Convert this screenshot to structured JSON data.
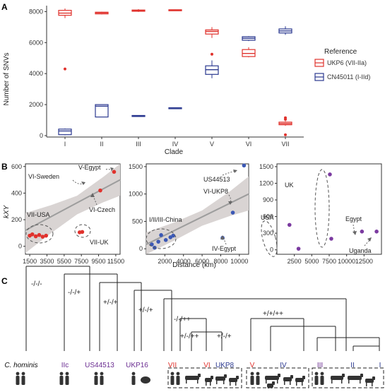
{
  "panels": {
    "a": "A",
    "b": "B",
    "c": "C"
  },
  "colors": {
    "ukp6": "#e0322d",
    "cn45011": "#2b3990",
    "purple": "#6a2c91",
    "ribbon": "#d9d4d3",
    "fit": "#9d9d9d",
    "points_b": "#e0322d",
    "points_b2": "#3b58b5",
    "points_b3": "#7b3aa0"
  },
  "chart_data": [
    {
      "type": "box",
      "id": "A",
      "ylabel": "Number of SNVs",
      "xlabel": "Clade",
      "ylim": [
        0,
        8200
      ],
      "yticks": [
        0,
        2000,
        4000,
        6000,
        8000
      ],
      "categories": [
        "I",
        "II",
        "III",
        "IV",
        "V",
        "VI",
        "VII"
      ],
      "legend": {
        "title": "Reference",
        "items": [
          "UKP6 (VII-IIa)",
          "CN45011 (I-IId)"
        ],
        "placement": "right"
      },
      "series": [
        {
          "name": "UKP6 (VII-IIa)",
          "color_key": "ukp6",
          "boxes": [
            {
              "category": "I",
              "min": 7580,
              "q1": 7760,
              "median": 7900,
              "q3": 8080,
              "max": 8200,
              "outliers": [
                4300
              ]
            },
            {
              "category": "II",
              "min": 7820,
              "q1": 7850,
              "median": 7920,
              "q3": 7960,
              "max": 7990,
              "outliers": []
            },
            {
              "category": "III",
              "min": 7980,
              "q1": 8020,
              "median": 8060,
              "q3": 8100,
              "max": 8160,
              "outliers": []
            },
            {
              "category": "IV",
              "min": 8060,
              "q1": 8080,
              "median": 8100,
              "q3": 8120,
              "max": 8140,
              "outliers": []
            },
            {
              "category": "V",
              "min": 6300,
              "q1": 6550,
              "median": 6720,
              "q3": 6820,
              "max": 7000,
              "outliers": [
                5250
              ]
            },
            {
              "category": "VI",
              "min": 5050,
              "q1": 5100,
              "median": 5300,
              "q3": 5550,
              "max": 5700,
              "outliers": []
            },
            {
              "category": "VII",
              "min": 640,
              "q1": 700,
              "median": 780,
              "q3": 870,
              "max": 940,
              "outliers": [
                1150,
                1050,
                50
              ]
            }
          ]
        },
        {
          "name": "CN45011 (I-IId)",
          "color_key": "cn45011",
          "boxes": [
            {
              "category": "I",
              "min": 20,
              "q1": 60,
              "median": 300,
              "q3": 420,
              "max": 460,
              "outliers": []
            },
            {
              "category": "II",
              "min": 1200,
              "q1": 1200,
              "median": 1900,
              "q3": 2000,
              "max": 2000,
              "outliers": []
            },
            {
              "category": "III",
              "min": 1280,
              "q1": 1280,
              "median": 1280,
              "q3": 1300,
              "max": 1300,
              "outliers": []
            },
            {
              "category": "IV",
              "min": 1780,
              "q1": 1780,
              "median": 1790,
              "q3": 1800,
              "max": 1800,
              "outliers": []
            },
            {
              "category": "V",
              "min": 3700,
              "q1": 3950,
              "median": 4250,
              "q3": 4500,
              "max": 4850,
              "outliers": []
            },
            {
              "category": "VI",
              "min": 6100,
              "q1": 6150,
              "median": 6280,
              "q3": 6380,
              "max": 6420,
              "outliers": []
            },
            {
              "category": "VII",
              "min": 6500,
              "q1": 6620,
              "median": 6750,
              "q3": 6880,
              "max": 7050,
              "outliers": []
            }
          ]
        }
      ]
    },
    {
      "type": "scatter",
      "id": "B1",
      "ylabel": "kXY",
      "xlim": [
        1000,
        12000
      ],
      "ylim": [
        -60,
        620
      ],
      "xticks": [
        1500,
        3500,
        5500,
        7500,
        9500,
        11500
      ],
      "yticks": [
        0,
        200,
        400,
        600
      ],
      "fit": {
        "x1": 1000,
        "y1": 120,
        "x2": 12000,
        "y2": 500
      },
      "band": {
        "upper": [
          [
            1000,
            250
          ],
          [
            4000,
            310
          ],
          [
            7000,
            380
          ],
          [
            10000,
            520
          ],
          [
            12000,
            620
          ]
        ],
        "lower": [
          [
            12000,
            380
          ],
          [
            10000,
            330
          ],
          [
            7000,
            240
          ],
          [
            4000,
            100
          ],
          [
            1000,
            -50
          ]
        ]
      },
      "points": [
        [
          1500,
          80
        ],
        [
          1800,
          90
        ],
        [
          2200,
          75
        ],
        [
          2600,
          85
        ],
        [
          3000,
          72
        ],
        [
          3400,
          80
        ],
        [
          7300,
          105
        ],
        [
          7600,
          108
        ],
        [
          9700,
          420
        ],
        [
          11300,
          560
        ]
      ],
      "annotations": [
        "VI-Sweden",
        "V-Egypt",
        "VI-Czech",
        "VII-USA",
        "VII-UK"
      ]
    },
    {
      "type": "scatter",
      "id": "B2",
      "xlabel": "Distance (km)",
      "xlim": [
        0,
        11000
      ],
      "ylim": [
        -100,
        1550
      ],
      "xticks": [
        2000,
        4000,
        6000,
        8000,
        10000
      ],
      "yticks": [
        0,
        500,
        1000,
        1500
      ],
      "fit": {
        "x1": 0,
        "y1": 80,
        "x2": 11000,
        "y2": 1000
      },
      "band": {
        "upper": [
          [
            0,
            300
          ],
          [
            3000,
            480
          ],
          [
            6000,
            700
          ],
          [
            9000,
            1050
          ],
          [
            11000,
            1320
          ]
        ],
        "lower": [
          [
            11000,
            700
          ],
          [
            9000,
            600
          ],
          [
            6000,
            420
          ],
          [
            3000,
            150
          ],
          [
            0,
            -150
          ]
        ]
      },
      "points": [
        [
          600,
          80
        ],
        [
          900,
          20
        ],
        [
          1300,
          130
        ],
        [
          1600,
          250
        ],
        [
          2100,
          160
        ],
        [
          2600,
          210
        ],
        [
          2900,
          240
        ],
        [
          8200,
          200
        ],
        [
          9300,
          660
        ],
        [
          10500,
          1520
        ]
      ],
      "annotations": [
        "US44513",
        "VI-UKP8",
        "I/II/III-China",
        "IV-Egypt"
      ]
    },
    {
      "type": "scatter",
      "id": "B3",
      "xlim": [
        0,
        15000
      ],
      "ylim": [
        -80,
        1550
      ],
      "xticks": [
        2500,
        5000,
        7500,
        10000,
        12500
      ],
      "yticks": [
        0,
        300,
        600,
        900,
        1200,
        1500
      ],
      "points": [
        [
          1800,
          450
        ],
        [
          3100,
          20
        ],
        [
          7600,
          1360
        ],
        [
          7800,
          200
        ],
        [
          12200,
          330
        ],
        [
          14300,
          330
        ]
      ],
      "annotations": [
        "USA",
        "UK",
        "Egypt",
        "Uganda"
      ]
    }
  ],
  "tree": {
    "signs": [
      "-/-/-",
      "-/-/+",
      "+/-/+",
      "+/-/+",
      "-/-/++",
      "+/+/++",
      "+/-/++",
      "+/-/+"
    ],
    "tips": [
      {
        "label": "C. hominis",
        "color": "#111111",
        "italic": true
      },
      {
        "label": "IIc",
        "color": "#6a2c91",
        "italic": false
      },
      {
        "label": "US44513",
        "color": "#6a2c91",
        "italic": false
      },
      {
        "label": "UKP16",
        "color": "#6a2c91",
        "italic": false
      },
      {
        "label": "VII",
        "color": "#e0322d",
        "italic": false
      },
      {
        "label": "VI",
        "color": "#e0322d",
        "italic": false
      },
      {
        "label": "UKP8",
        "color": "#2b3990",
        "italic": false
      },
      {
        "label": "V",
        "color": "#e0322d",
        "italic": false
      },
      {
        "label": "IV",
        "color": "#2b3990",
        "italic": false
      },
      {
        "label": "III",
        "color": "#6a2c91",
        "italic": false
      },
      {
        "label": "II",
        "color": "#2b3990",
        "italic": false
      },
      {
        "label": "I",
        "color": "#2b3990",
        "italic": false
      }
    ]
  }
}
